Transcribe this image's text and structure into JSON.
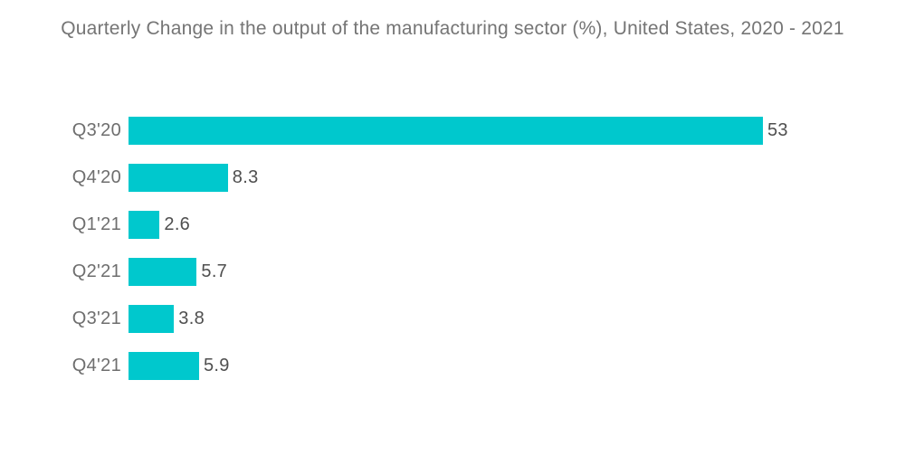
{
  "page": {
    "background": "#ffffff"
  },
  "chart_data": {
    "type": "bar",
    "orientation": "horizontal",
    "title": "Quarterly Change in the output of the manufacturing sector (%), United States, 2020 - 2021",
    "categories": [
      "Q3'20",
      "Q4'20",
      "Q1'21",
      "Q2'21",
      "Q3'21",
      "Q4'21"
    ],
    "values": [
      53,
      8.3,
      2.6,
      5.7,
      3.8,
      5.9
    ],
    "value_labels": [
      "53",
      "8.3",
      "2.6",
      "5.7",
      "3.8",
      "5.9"
    ],
    "xlim": [
      0,
      53
    ],
    "grid": false,
    "legend": false,
    "colors": {
      "bar": "#00C8CD",
      "category_label": "#6e6e6e",
      "value_label": "#4f4f4f",
      "title": "#757575"
    }
  }
}
